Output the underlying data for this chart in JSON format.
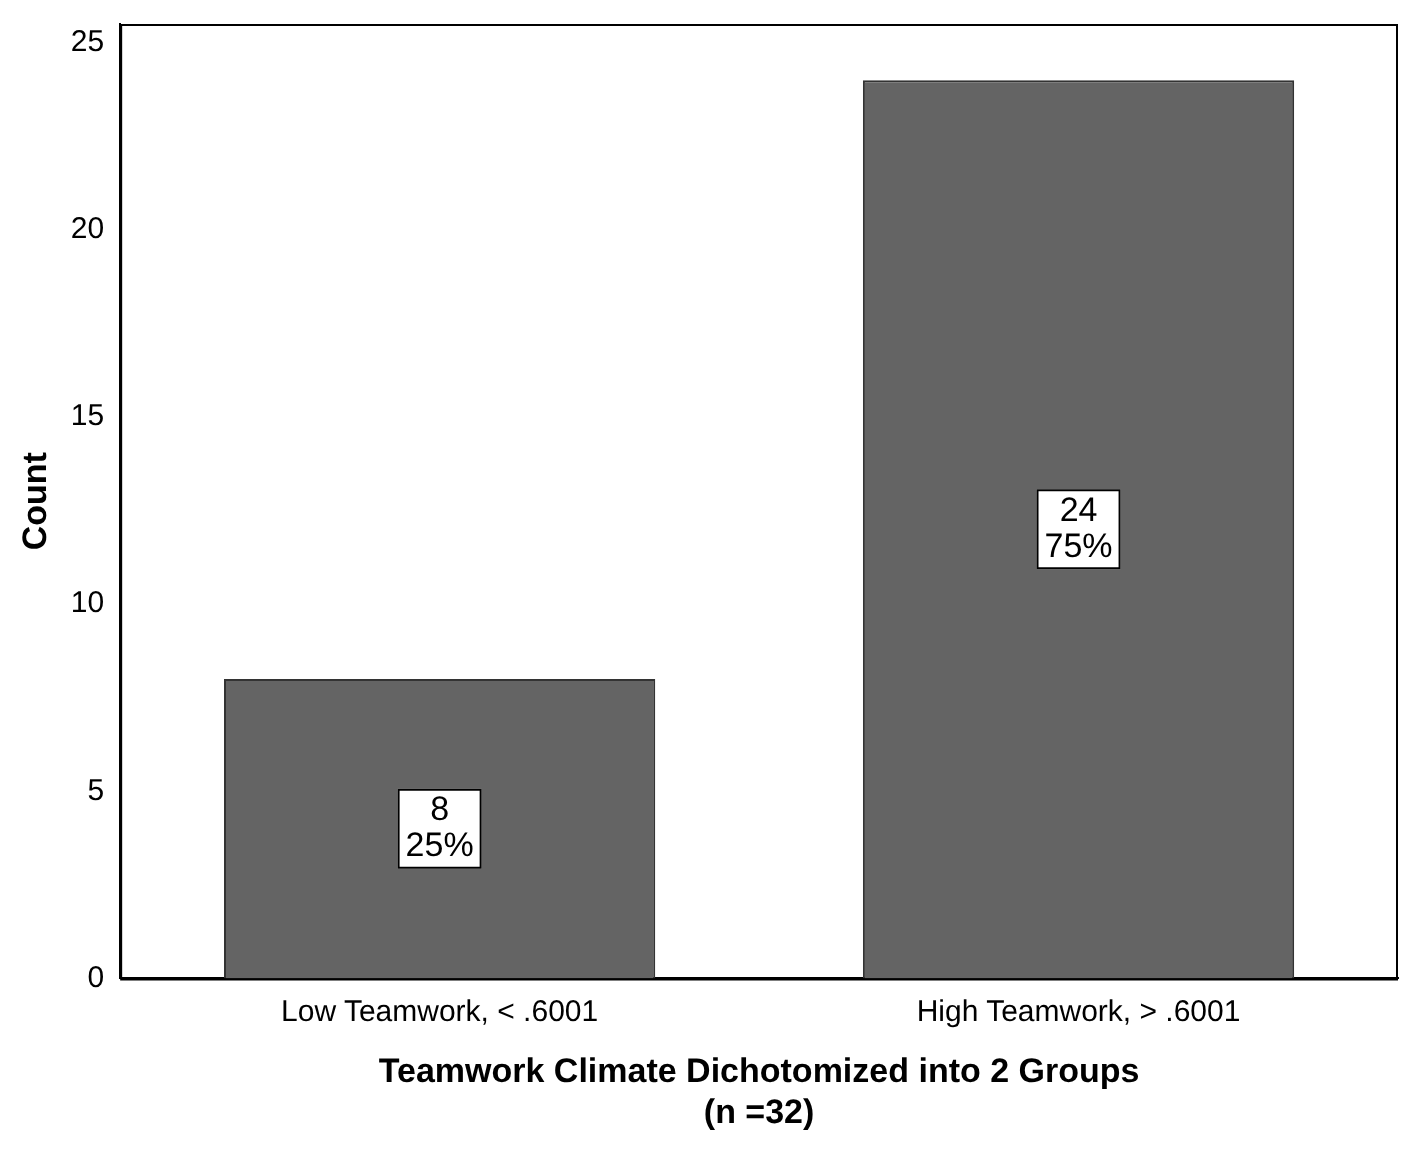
{
  "chart_data": {
    "type": "bar",
    "xlabel": "Teamwork Climate Dichotomized into 2 Groups\n(n =32)",
    "ylabel": "Count",
    "categories": [
      "Low Teamwork, < .6001",
      "High Teamwork, > .6001"
    ],
    "values": [
      8,
      24
    ],
    "value_labels": [
      "8\n25%",
      "24\n75%"
    ],
    "color": "#646464",
    "ylim": [
      0,
      25.5
    ],
    "yticks": [
      0,
      5,
      10,
      15,
      20,
      25
    ],
    "grid": false,
    "legend": false
  }
}
